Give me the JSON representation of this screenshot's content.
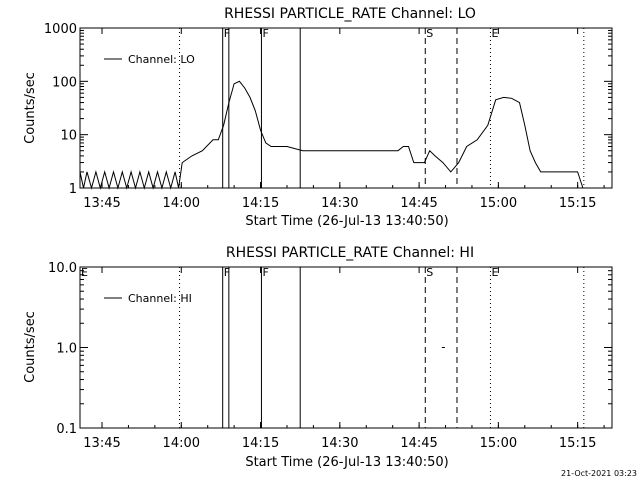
{
  "chart_data": [
    {
      "type": "line",
      "title": "RHESSI PARTICLE_RATE Channel: LO",
      "xlabel": "Start Time (26-Jul-13 13:40:50)",
      "ylabel": "Counts/sec",
      "yscale": "log",
      "ylim": [
        1,
        1000
      ],
      "xlim": [
        "13:40:50",
        "15:21:30"
      ],
      "x_ticks": [
        "13:45",
        "14:00",
        "14:15",
        "14:30",
        "14:45",
        "15:00",
        "15:15"
      ],
      "y_ticks": [
        "1",
        "10",
        "100",
        "1000"
      ],
      "legend": {
        "entries": [
          "Channel: LO"
        ],
        "placement": "top-left"
      },
      "series": [
        {
          "name": "Channel: LO",
          "x": [
            "13:40:50",
            "13:41:30",
            "13:42:10",
            "13:43:00",
            "13:43:50",
            "13:44:40",
            "13:45:30",
            "13:46:20",
            "13:47:10",
            "13:48:00",
            "13:48:50",
            "13:49:40",
            "13:50:30",
            "13:51:20",
            "13:52:10",
            "13:53:00",
            "13:53:50",
            "13:54:40",
            "13:55:30",
            "13:56:20",
            "13:57:10",
            "13:58:00",
            "13:58:50",
            "13:59:30",
            "14:00:10",
            "14:02:00",
            "14:04:00",
            "14:06:00",
            "14:07:00",
            "14:08:00",
            "14:09:00",
            "14:10:00",
            "14:11:00",
            "14:12:00",
            "14:13:00",
            "14:14:00",
            "14:15:00",
            "14:16:00",
            "14:17:00",
            "14:20:00",
            "14:23:00",
            "14:26:00",
            "14:29:00",
            "14:32:00",
            "14:35:00",
            "14:38:00",
            "14:41:00",
            "14:42:00",
            "14:43:00",
            "14:44:00",
            "14:46:00",
            "14:47:00",
            "14:48:00",
            "14:49:30",
            "14:51:00",
            "14:52:30",
            "14:54:00",
            "14:56:00",
            "14:58:00",
            "14:59:30",
            "15:01:00",
            "15:02:30",
            "15:04:00",
            "15:05:00",
            "15:06:00",
            "15:07:00",
            "15:08:00",
            "15:09:00",
            "15:10:00",
            "15:12:00",
            "15:14:00",
            "15:15:00",
            "15:16:00"
          ],
          "y": [
            2,
            1,
            2,
            1,
            2,
            1,
            2,
            1,
            2,
            1,
            2,
            1,
            2,
            1,
            2,
            1,
            2,
            1,
            2,
            1,
            2,
            1,
            2,
            1,
            3,
            4,
            5,
            8,
            8,
            15,
            40,
            90,
            100,
            75,
            50,
            28,
            12,
            7,
            6,
            6,
            5,
            5,
            5,
            5,
            5,
            5,
            5,
            6,
            6,
            3,
            3,
            5,
            4,
            3,
            2,
            3,
            6,
            8,
            15,
            45,
            50,
            48,
            40,
            15,
            5,
            3,
            2,
            2,
            2,
            2,
            2,
            2,
            1
          ]
        }
      ],
      "markers": [
        "F",
        "F",
        "S",
        "E"
      ]
    },
    {
      "type": "line",
      "title": "RHESSI PARTICLE_RATE Channel: HI",
      "xlabel": "Start Time (26-Jul-13 13:40:50)",
      "ylabel": "Counts/sec",
      "yscale": "log",
      "ylim": [
        0.1,
        10
      ],
      "xlim": [
        "13:40:50",
        "15:21:30"
      ],
      "x_ticks": [
        "13:45",
        "14:00",
        "14:15",
        "14:30",
        "14:45",
        "15:00",
        "15:15"
      ],
      "y_ticks": [
        "0.1",
        "1.0",
        "10.0"
      ],
      "legend": {
        "entries": [
          "Channel: HI"
        ],
        "placement": "top-left"
      },
      "series": [
        {
          "name": "Channel: HI",
          "x": [
            "14:49:30"
          ],
          "y": [
            1
          ]
        }
      ],
      "markers": [
        "E",
        "F",
        "F",
        "S",
        "E"
      ]
    }
  ],
  "timestamp": "21-Oct-2021 03:23"
}
